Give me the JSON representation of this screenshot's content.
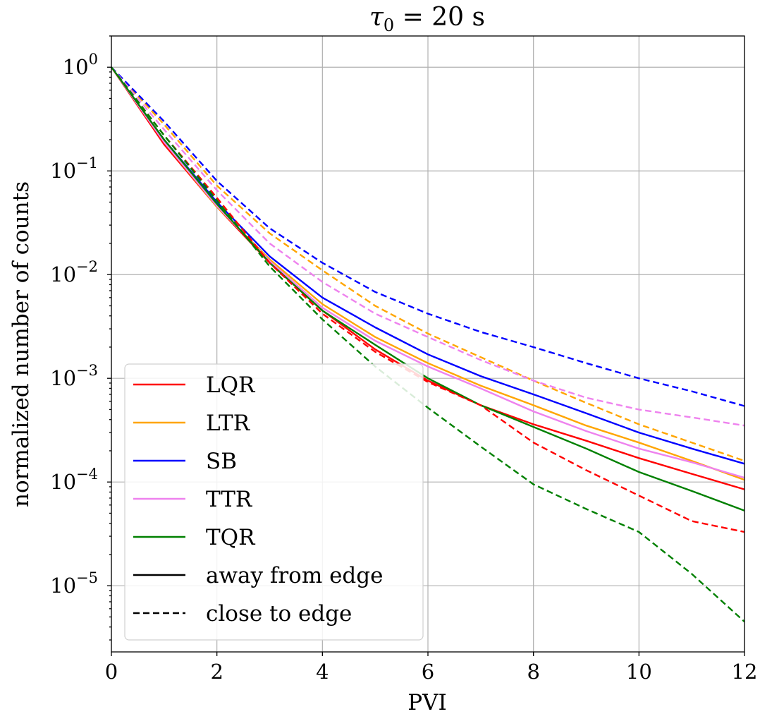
{
  "chart_data": {
    "type": "line",
    "title_main": "τ",
    "title_sub": "0",
    "title_rest": " = 20 s",
    "xlabel": "PVI",
    "ylabel": "normalized number of counts",
    "xlim": [
      0,
      12
    ],
    "ylim": [
      2.3e-06,
      2.0
    ],
    "yscale": "log",
    "grid": true,
    "legend_position": "lower-left",
    "x_ticks": [
      0,
      2,
      4,
      6,
      8,
      10,
      12
    ],
    "x_tick_labels": [
      "0",
      "2",
      "4",
      "6",
      "8",
      "10",
      "12"
    ],
    "y_ticks": [
      1,
      0.1,
      0.01,
      0.001,
      0.0001,
      1e-05
    ],
    "y_tick_base": [
      "10",
      "10",
      "10",
      "10",
      "10",
      "10"
    ],
    "y_tick_exp": [
      "0",
      "−1",
      "−2",
      "−3",
      "−4",
      "−5"
    ],
    "x": [
      0,
      1,
      2,
      3,
      4,
      5,
      6,
      7,
      8,
      9,
      10,
      11,
      12
    ],
    "series": [
      {
        "name": "LQR",
        "style": "solid",
        "color": "#ff0000",
        "values": [
          1.0,
          0.18,
          0.045,
          0.013,
          0.0045,
          0.0019,
          0.00095,
          0.00055,
          0.00036,
          0.00025,
          0.00017,
          0.00012,
          8.5e-05
        ]
      },
      {
        "name": "LTR",
        "style": "solid",
        "color": "#ffa500",
        "values": [
          1.0,
          0.19,
          0.045,
          0.014,
          0.0052,
          0.0025,
          0.0014,
          0.00085,
          0.00055,
          0.00035,
          0.00024,
          0.00016,
          0.000105
        ]
      },
      {
        "name": "SB",
        "style": "solid",
        "color": "#0000ff",
        "values": [
          1.0,
          0.2,
          0.05,
          0.015,
          0.006,
          0.0031,
          0.0017,
          0.00105,
          0.0007,
          0.00046,
          0.0003,
          0.00021,
          0.00015
        ]
      },
      {
        "name": "TTR",
        "style": "solid",
        "color": "#ee82ee",
        "values": [
          1.0,
          0.19,
          0.046,
          0.0135,
          0.0048,
          0.0023,
          0.0013,
          0.0008,
          0.00048,
          0.00031,
          0.00021,
          0.000155,
          0.00011
        ]
      },
      {
        "name": "TQR",
        "style": "solid",
        "color": "#008000",
        "values": [
          1.0,
          0.2,
          0.048,
          0.013,
          0.0045,
          0.0021,
          0.001,
          0.00055,
          0.00034,
          0.00021,
          0.000125,
          8.2e-05,
          5.3e-05
        ]
      },
      {
        "name": "",
        "style": "dashed",
        "color": "#ff0000",
        "values": [
          1.0,
          0.22,
          0.055,
          0.013,
          0.0042,
          0.0018,
          0.00092,
          0.00055,
          0.00024,
          0.00013,
          7.4e-05,
          4.2e-05,
          3.3e-05
        ]
      },
      {
        "name": "",
        "style": "dashed",
        "color": "#ffa500",
        "values": [
          1.0,
          0.28,
          0.072,
          0.025,
          0.011,
          0.005,
          0.0027,
          0.0016,
          0.00095,
          0.00058,
          0.00036,
          0.00024,
          0.00016
        ]
      },
      {
        "name": "",
        "style": "dashed",
        "color": "#0000ff",
        "values": [
          1.0,
          0.3,
          0.08,
          0.028,
          0.013,
          0.0068,
          0.0042,
          0.0028,
          0.002,
          0.0014,
          0.001,
          0.00075,
          0.00054
        ]
      },
      {
        "name": "",
        "style": "dashed",
        "color": "#ee82ee",
        "values": [
          1.0,
          0.25,
          0.065,
          0.02,
          0.0085,
          0.0042,
          0.0025,
          0.0015,
          0.00095,
          0.00065,
          0.0005,
          0.00042,
          0.00035
        ]
      },
      {
        "name": "",
        "style": "dashed",
        "color": "#008000",
        "values": [
          1.0,
          0.22,
          0.052,
          0.012,
          0.0037,
          0.0013,
          0.00052,
          0.00022,
          9.5e-05,
          5.5e-05,
          3.3e-05,
          1.3e-05,
          4.5e-06
        ]
      }
    ],
    "legend": [
      {
        "label": "LQR",
        "color": "#ff0000",
        "style": "solid"
      },
      {
        "label": "LTR",
        "color": "#ffa500",
        "style": "solid"
      },
      {
        "label": "SB",
        "color": "#0000ff",
        "style": "solid"
      },
      {
        "label": "TTR",
        "color": "#ee82ee",
        "style": "solid"
      },
      {
        "label": "TQR",
        "color": "#008000",
        "style": "solid"
      },
      {
        "label": "away from edge",
        "color": "#000000",
        "style": "solid"
      },
      {
        "label": "close to edge",
        "color": "#000000",
        "style": "dashed"
      }
    ]
  }
}
